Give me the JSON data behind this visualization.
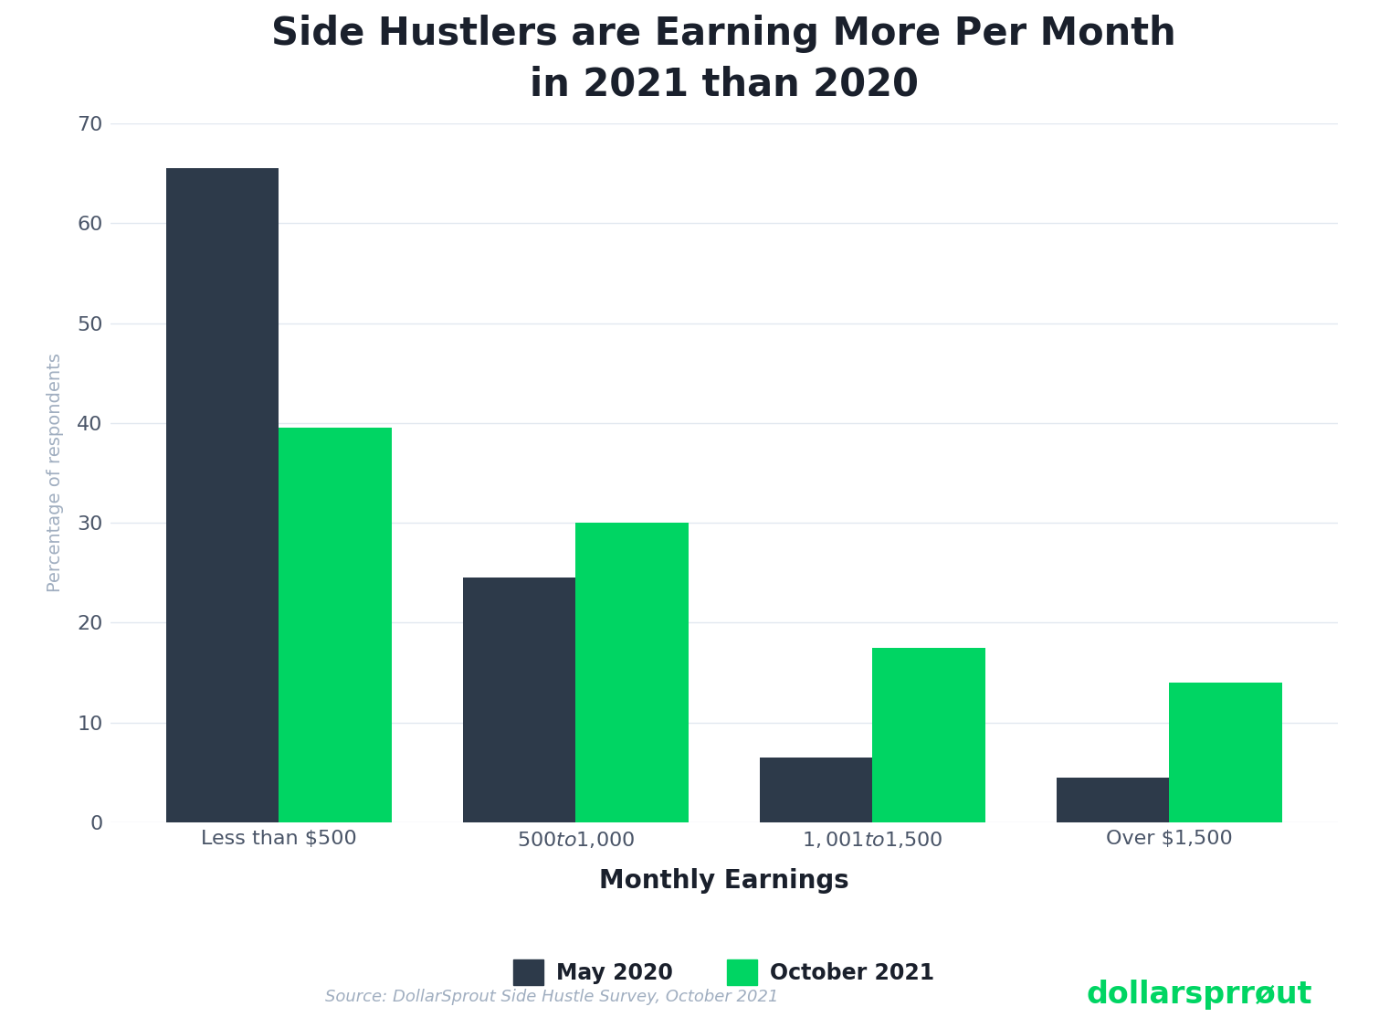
{
  "title": "Side Hustlers are Earning More Per Month\nin 2021 than 2020",
  "xlabel": "Monthly Earnings",
  "ylabel": "Percentage of respondents",
  "categories": [
    "Less than $500",
    "$500 to $1,000",
    "$1,001 to $1,500",
    "Over $1,500"
  ],
  "may2020": [
    65.5,
    24.5,
    6.5,
    4.5
  ],
  "oct2021": [
    39.5,
    30.0,
    17.5,
    14.0
  ],
  "color_2020": "#2d3a4a",
  "color_2021": "#00d563",
  "ylim": [
    0,
    70
  ],
  "yticks": [
    0,
    10,
    20,
    30,
    40,
    50,
    60,
    70
  ],
  "legend_labels": [
    "May 2020",
    "October 2021"
  ],
  "source_text": "Source: DollarSprout Side Hustle Survey, October 2021",
  "source_color": "#a0aec0",
  "ylabel_color": "#a0aec0",
  "title_color": "#1a202c",
  "tick_color": "#4a5568",
  "background_color": "#ffffff",
  "grid_color": "#e2e8f0",
  "bar_width": 0.38,
  "title_fontsize": 30,
  "xlabel_fontsize": 20,
  "ylabel_fontsize": 14,
  "tick_fontsize": 16,
  "legend_fontsize": 17,
  "source_fontsize": 13,
  "dollarsprout_color": "#00d563"
}
